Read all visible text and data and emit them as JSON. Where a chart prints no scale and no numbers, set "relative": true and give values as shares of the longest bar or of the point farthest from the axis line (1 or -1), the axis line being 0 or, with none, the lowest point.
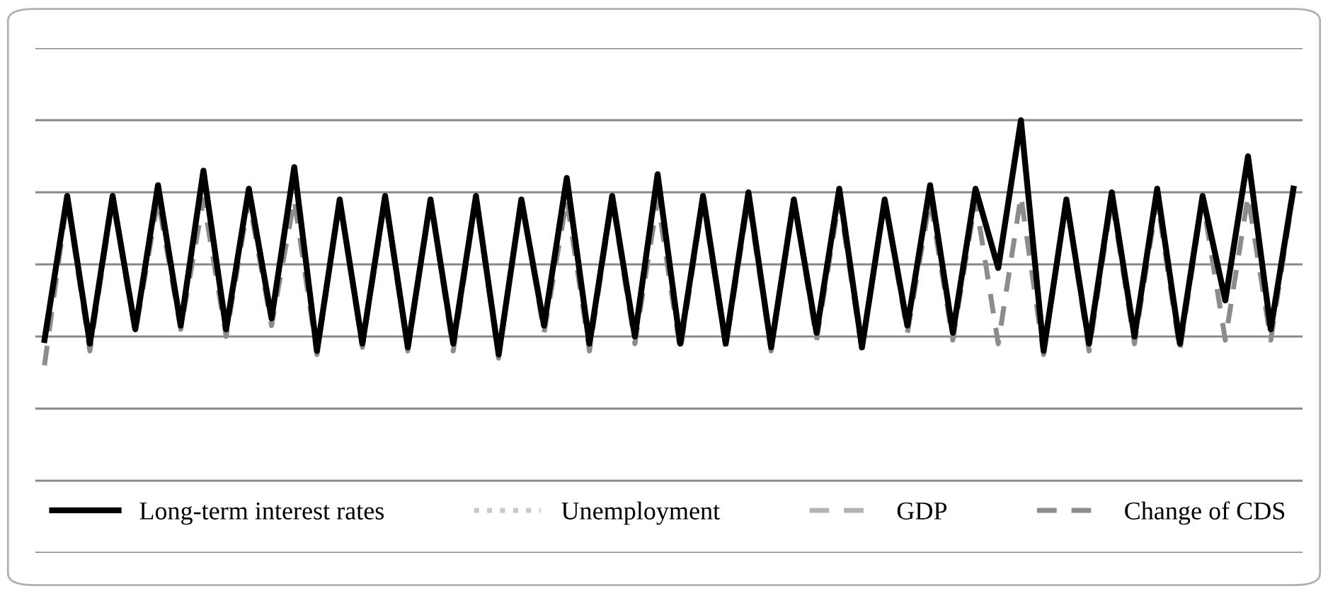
{
  "chart_data": {
    "type": "line",
    "relative": true,
    "grid": true,
    "legend": "bottom",
    "categories": [
      null,
      null,
      null,
      null,
      null,
      null,
      null,
      null,
      null,
      null,
      null,
      null,
      null,
      null,
      null,
      null,
      null,
      null,
      null,
      null,
      null,
      null,
      null,
      null,
      null,
      null,
      null,
      null,
      null,
      null,
      null,
      null,
      null,
      null,
      null,
      null,
      null,
      null,
      null,
      null,
      null,
      null,
      null,
      null,
      null,
      null,
      null,
      null,
      null,
      null,
      null,
      null,
      null,
      null,
      null,
      null
    ],
    "series": [
      {
        "name": "Long-term interest rates",
        "color": "#000000",
        "line_style": "solid",
        "values": [
          0.39,
          0.79,
          0.38,
          0.79,
          0.42,
          0.82,
          0.43,
          0.86,
          0.42,
          0.81,
          0.45,
          0.87,
          0.36,
          0.78,
          0.38,
          0.79,
          0.37,
          0.78,
          0.38,
          0.79,
          0.35,
          0.78,
          0.43,
          0.84,
          0.38,
          0.79,
          0.4,
          0.85,
          0.38,
          0.79,
          0.38,
          0.8,
          0.37,
          0.78,
          0.41,
          0.81,
          0.37,
          0.78,
          0.43,
          0.82,
          0.41,
          0.81,
          0.59,
          1.0,
          0.36,
          0.78,
          0.38,
          0.8,
          0.4,
          0.81,
          0.38,
          0.79,
          0.5,
          0.9,
          0.42,
          0.81
        ]
      },
      {
        "name": "Unemployment",
        "color": "#c8c8c8",
        "line_style": "dotted",
        "values": [
          null,
          null,
          null,
          null,
          null,
          null,
          null,
          null,
          null,
          null,
          null,
          null,
          null,
          null,
          null,
          null,
          null,
          null,
          null,
          null,
          null,
          null,
          null,
          null,
          null,
          null,
          null,
          null,
          null,
          null,
          null,
          null,
          null,
          null,
          null,
          null,
          null,
          null,
          null,
          null,
          null,
          null,
          null,
          null,
          null,
          null,
          null,
          null,
          null,
          null,
          null,
          null,
          null,
          null,
          null,
          null
        ]
      },
      {
        "name": "GDP",
        "color": "#b4b4b4",
        "line_style": "dashed",
        "values": [
          null,
          null,
          null,
          null,
          null,
          null,
          null,
          null,
          null,
          null,
          null,
          null,
          null,
          null,
          null,
          null,
          null,
          null,
          null,
          null,
          null,
          null,
          null,
          null,
          null,
          null,
          null,
          null,
          null,
          null,
          null,
          null,
          null,
          null,
          null,
          null,
          null,
          null,
          null,
          null,
          null,
          null,
          null,
          null,
          null,
          null,
          null,
          null,
          null,
          null,
          null,
          null,
          null,
          null,
          null,
          null
        ]
      },
      {
        "name": "Change of CDS",
        "color": "#8c8c8c",
        "line_style": "dashed",
        "values": [
          0.32,
          0.78,
          0.36,
          0.78,
          0.41,
          0.78,
          0.42,
          0.78,
          0.4,
          0.78,
          0.43,
          0.78,
          0.35,
          0.78,
          0.37,
          0.78,
          0.36,
          0.78,
          0.36,
          0.78,
          0.34,
          0.79,
          0.41,
          0.78,
          0.36,
          0.78,
          0.38,
          0.78,
          0.36,
          0.78,
          0.37,
          0.78,
          0.36,
          0.78,
          0.39,
          0.78,
          0.36,
          0.78,
          0.41,
          0.78,
          0.39,
          0.78,
          0.38,
          0.79,
          0.35,
          0.78,
          0.36,
          0.78,
          0.38,
          0.78,
          0.36,
          0.78,
          0.39,
          0.79,
          0.39,
          0.8
        ]
      }
    ]
  }
}
